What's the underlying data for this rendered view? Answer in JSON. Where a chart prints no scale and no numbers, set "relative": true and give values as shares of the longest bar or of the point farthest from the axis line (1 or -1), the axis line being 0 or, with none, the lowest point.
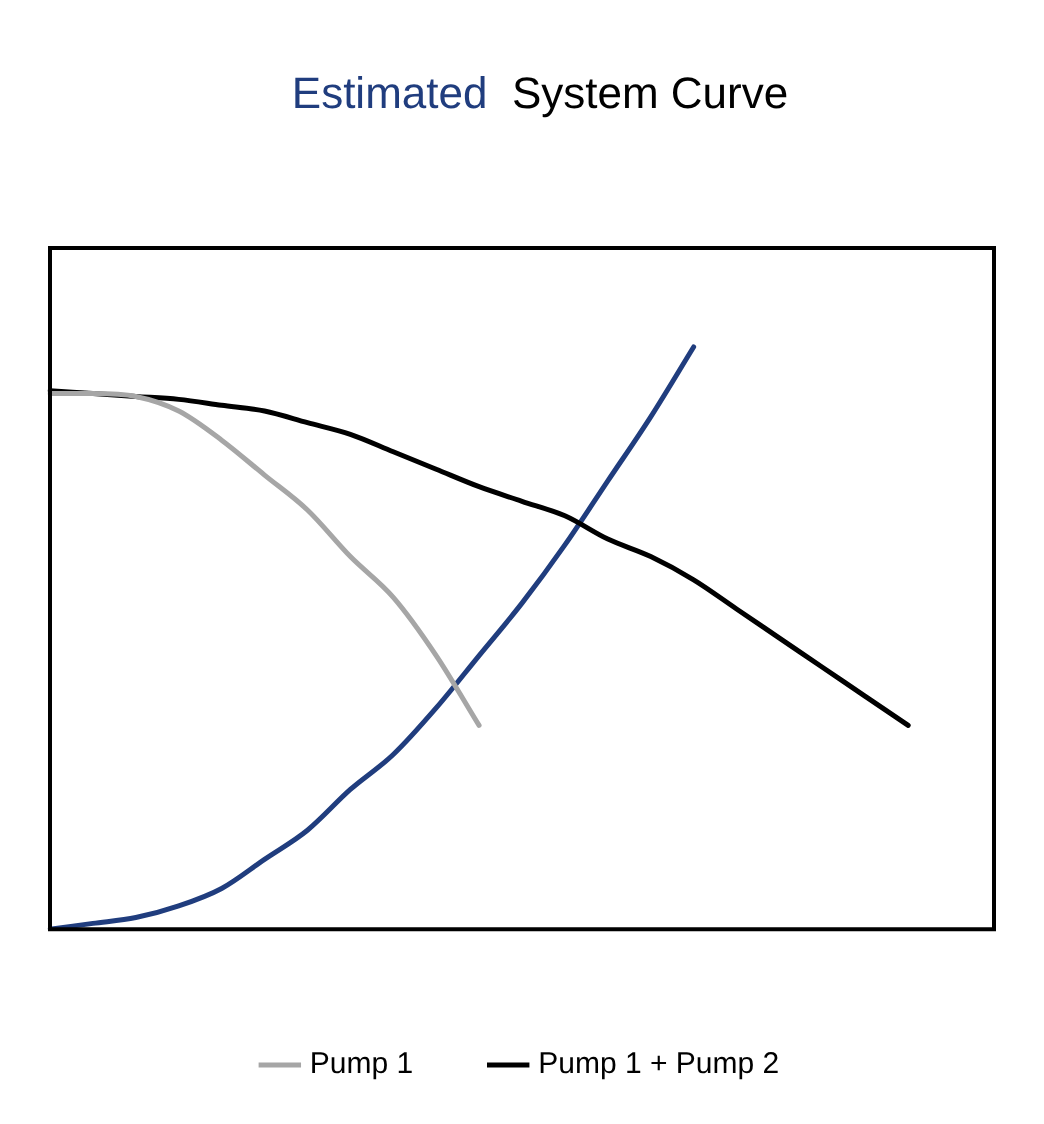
{
  "chart_data": {
    "type": "line",
    "title": "Estimated  System Curve",
    "relative": true,
    "legend": "bottom",
    "marker": "none",
    "line_style": "solid",
    "grid": false,
    "categories": [
      null,
      null,
      null,
      null,
      null,
      null,
      null,
      null,
      null,
      null,
      null,
      null,
      null,
      null,
      null,
      null,
      null,
      null,
      null,
      null,
      null,
      null,
      null
    ],
    "series": [
      {
        "name": "Pump 1",
        "color": "#a6a6a6",
        "values": [
          0.92,
          0.92,
          0.915,
          0.89,
          0.84,
          0.78,
          0.72,
          0.64,
          0.57,
          0.47,
          0.35,
          null,
          null,
          null,
          null,
          null,
          null,
          null,
          null,
          null,
          null,
          null,
          null
        ]
      },
      {
        "name": "Pump 1 + Pump 2",
        "color": "#000000",
        "values": [
          0.925,
          0.92,
          0.915,
          0.91,
          0.9,
          0.89,
          0.87,
          0.85,
          0.82,
          0.79,
          0.76,
          0.735,
          0.71,
          0.67,
          0.64,
          0.6,
          0.55,
          0.5,
          0.45,
          0.4,
          0.35,
          null,
          null
        ]
      },
      {
        "color": "#203d7e",
        "values": [
          0,
          0.01,
          0.02,
          0.04,
          0.07,
          0.12,
          0.17,
          0.24,
          0.3,
          0.38,
          0.47,
          0.56,
          0.66,
          0.77,
          0.88,
          1.0,
          null,
          null,
          null,
          null,
          null,
          null,
          null
        ]
      }
    ]
  }
}
